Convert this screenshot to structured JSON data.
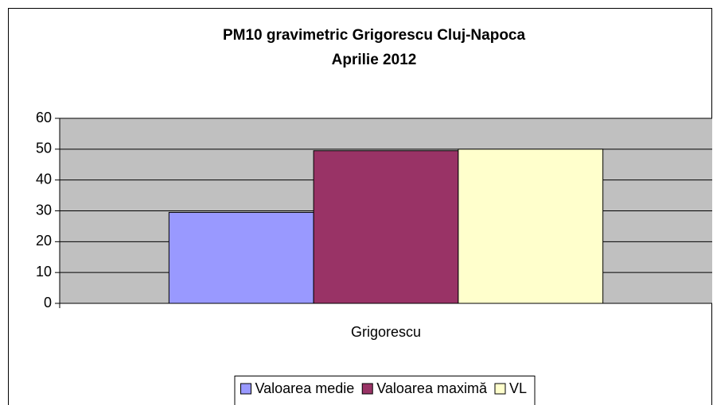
{
  "chart_data": {
    "type": "bar",
    "title": "PM10 gravimetric Grigorescu Cluj-Napoca",
    "subtitle": "Aprilie 2012",
    "categories": [
      "Grigorescu"
    ],
    "series": [
      {
        "name": "Valoarea medie",
        "color": "#9999ff",
        "values": [
          29.5
        ]
      },
      {
        "name": "Valoarea maximă",
        "color": "#993366",
        "values": [
          49.5
        ]
      },
      {
        "name": "VL",
        "color": "#ffffcc",
        "values": [
          50
        ]
      }
    ],
    "ylim": [
      0,
      60
    ],
    "yticks": [
      0,
      10,
      20,
      30,
      40,
      50,
      60
    ],
    "grid": true,
    "legend": "bottom"
  }
}
